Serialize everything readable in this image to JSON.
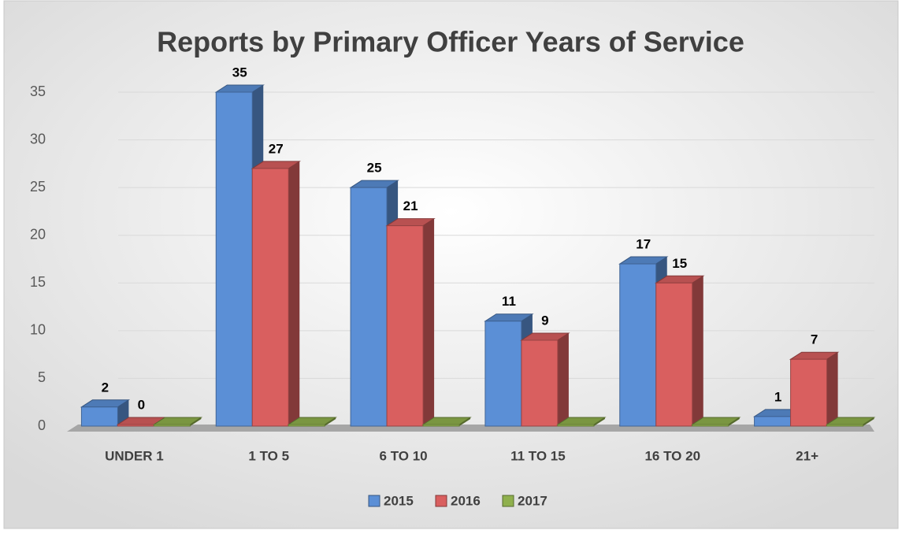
{
  "chart_data": {
    "type": "bar3d",
    "title": "Reports by Primary Officer Years of Service",
    "categories": [
      "UNDER 1",
      "1 TO 5",
      "6 TO 10",
      "11 TO 15",
      "16 TO 20",
      "21+"
    ],
    "series": [
      {
        "name": "2015",
        "color": "#5b8fd6",
        "show_labels": true,
        "values": [
          2,
          35,
          25,
          11,
          17,
          1
        ]
      },
      {
        "name": "2016",
        "color": "#d95f5f",
        "show_labels": true,
        "values": [
          0,
          27,
          21,
          9,
          15,
          7
        ]
      },
      {
        "name": "2017",
        "color": "#8fb04d",
        "show_labels": false,
        "values": [
          0,
          0,
          0,
          0,
          0,
          0
        ]
      }
    ],
    "ylim": [
      0,
      35
    ],
    "yticks": [
      0,
      5,
      10,
      15,
      20,
      25,
      30,
      35
    ],
    "grid": true,
    "legend": "bottom"
  }
}
